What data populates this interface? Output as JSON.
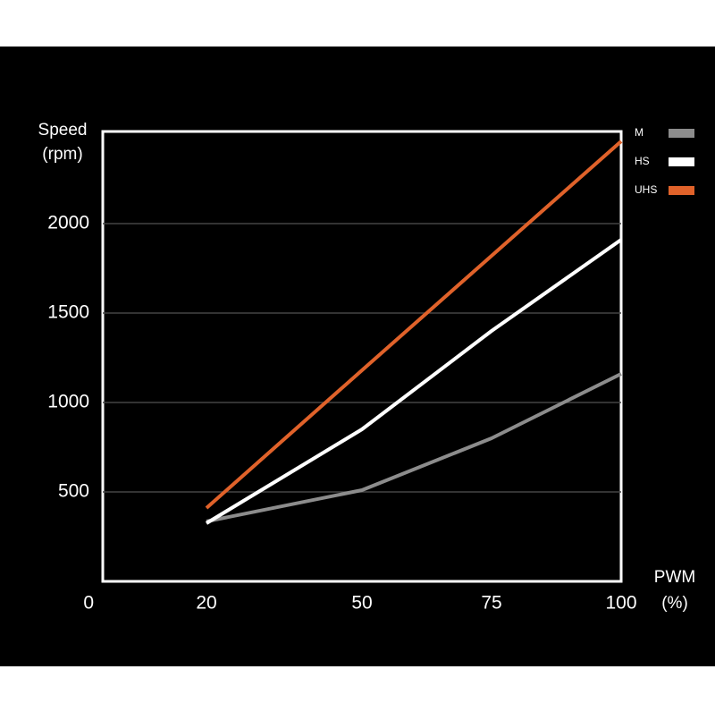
{
  "chart_data": {
    "type": "line",
    "y_label": [
      "Speed",
      "(rpm)"
    ],
    "x_label": [
      "PWM",
      "(%)"
    ],
    "x": [
      20,
      50,
      75,
      100
    ],
    "series": [
      {
        "name": "M",
        "color": "#8c8c8c",
        "values": [
          335,
          510,
          800,
          1160
        ]
      },
      {
        "name": "HS",
        "color": "#ffffff",
        "values": [
          325,
          850,
          1400,
          1910
        ]
      },
      {
        "name": "UHS",
        "color": "#e0622a",
        "values": [
          410,
          1180,
          1820,
          2460
        ]
      }
    ],
    "xlim": [
      0,
      100
    ],
    "xticks": [
      0,
      20,
      50,
      75,
      100
    ],
    "ylim": [
      0,
      2500
    ],
    "yticks": [
      500,
      1000,
      1500,
      2000
    ],
    "grid": true,
    "legend": "right"
  }
}
